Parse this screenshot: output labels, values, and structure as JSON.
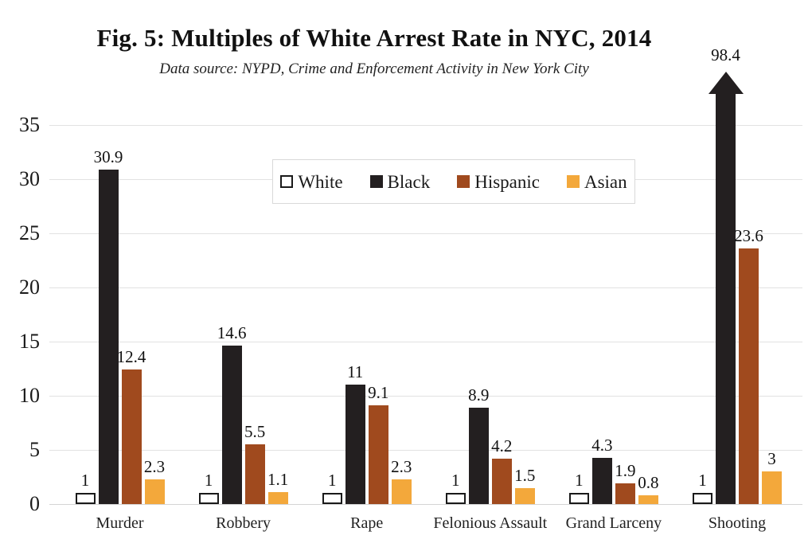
{
  "chart_data": {
    "type": "bar",
    "title": "Fig. 5: Multiples of White Arrest Rate in NYC, 2014",
    "subtitle": "Data source: NYPD, Crime and Enforcement Activity in New York City",
    "categories": [
      "Murder",
      "Robbery",
      "Rape",
      "Felonious Assault",
      "Grand Larceny",
      "Shooting"
    ],
    "series": [
      {
        "name": "White",
        "color": "#ffffff",
        "border": "#1a1a1a",
        "values": [
          1,
          1,
          1,
          1,
          1,
          1
        ]
      },
      {
        "name": "Black",
        "color": "#231f20",
        "values": [
          30.9,
          14.6,
          11,
          8.9,
          4.3,
          98.4
        ]
      },
      {
        "name": "Hispanic",
        "color": "#a04a1e",
        "values": [
          12.4,
          5.5,
          9.1,
          4.2,
          1.9,
          23.6
        ]
      },
      {
        "name": "Asian",
        "color": "#f3a83b",
        "values": [
          2.3,
          1.1,
          2.3,
          1.5,
          0.8,
          3
        ]
      }
    ],
    "value_labels": {
      "Murder": [
        "1",
        "30.9",
        "12.4",
        "2.3"
      ],
      "Robbery": [
        "1",
        "14.6",
        "5.5",
        "1.1"
      ],
      "Rape": [
        "1",
        "11",
        "9.1",
        "2.3"
      ],
      "Felonious Assault": [
        "1",
        "8.9",
        "4.2",
        "1.5"
      ],
      "Grand Larceny": [
        "1",
        "4.3",
        "1.9",
        "0.8"
      ],
      "Shooting": [
        "1",
        "98.4",
        "23.6",
        "3"
      ]
    },
    "ylim": [
      0,
      35
    ],
    "yticks": [
      0,
      5,
      10,
      15,
      20,
      25,
      30,
      35
    ],
    "grid": true,
    "legend": {
      "position": "top-center-inside",
      "entries": [
        "White",
        "Black",
        "Hispanic",
        "Asian"
      ]
    },
    "clipped_bars": [
      {
        "category": "Shooting",
        "series": "Black",
        "value": 98.4,
        "note": "bar exceeds axis, drawn as upward arrow"
      }
    ]
  }
}
